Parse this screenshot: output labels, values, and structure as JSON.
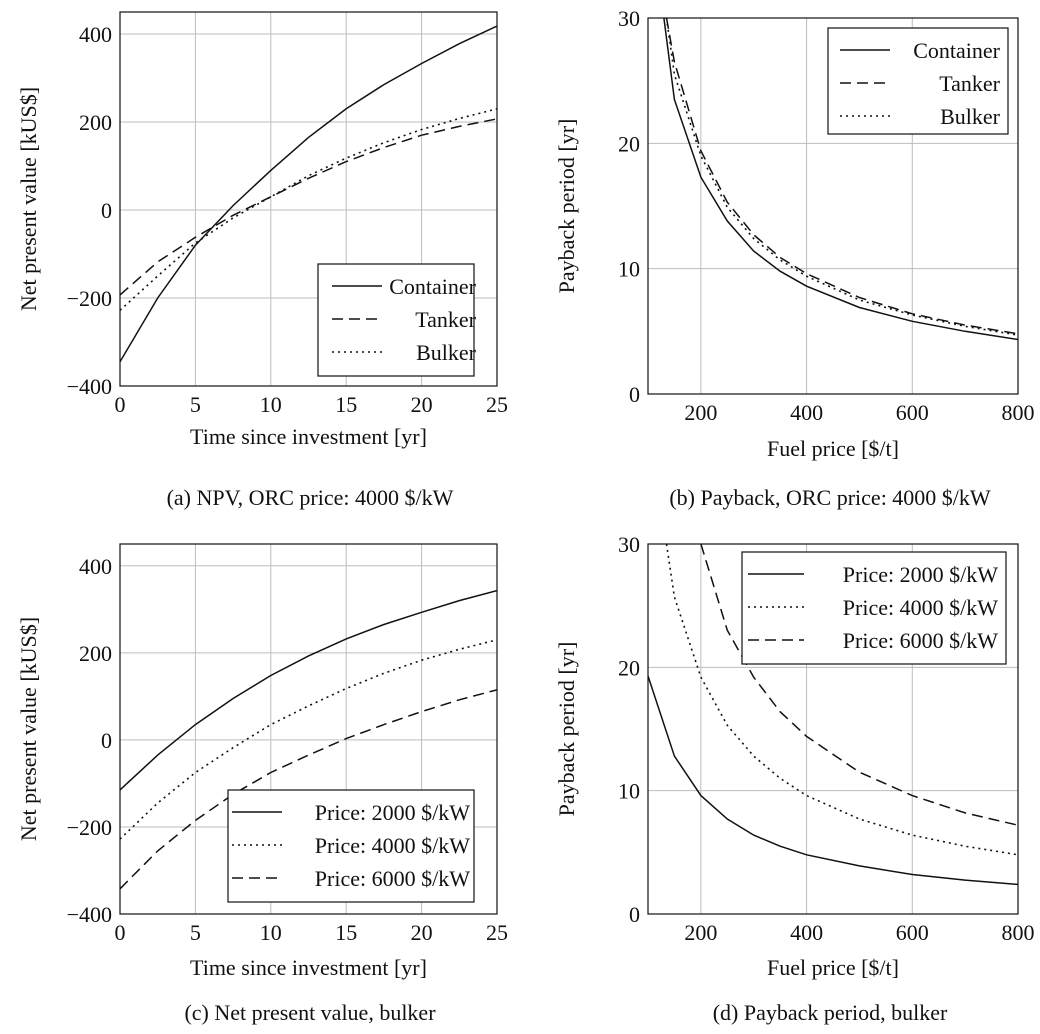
{
  "chart_data": [
    {
      "id": "a",
      "type": "line",
      "caption": "(a) NPV, ORC price: 4000 $/kW",
      "xlabel": "Time since investment [yr]",
      "ylabel": "Net present value [kUS$]",
      "xlim": [
        0,
        25
      ],
      "ylim": [
        -400,
        450
      ],
      "xticks": [
        0,
        5,
        10,
        15,
        20,
        25
      ],
      "yticks": [
        -400,
        -200,
        0,
        200,
        400
      ],
      "xtick_labels": [
        "0",
        "5",
        "10",
        "15",
        "20",
        "25"
      ],
      "ytick_labels": [
        "−400",
        "−200",
        "0",
        "200",
        "400"
      ],
      "grid": true,
      "legend_position": "lower-right",
      "series": [
        {
          "name": "Container",
          "style": "solid",
          "x": [
            0,
            2.5,
            5,
            7.5,
            10,
            12.5,
            15,
            17.5,
            20,
            22.5,
            25
          ],
          "y": [
            -345,
            -200,
            -80,
            10,
            90,
            165,
            230,
            285,
            333,
            378,
            418
          ]
        },
        {
          "name": "Tanker",
          "style": "dashed",
          "x": [
            0,
            2.5,
            5,
            7.5,
            10,
            12.5,
            15,
            17.5,
            20,
            22.5,
            25
          ],
          "y": [
            -193,
            -118,
            -62,
            -12,
            30,
            72,
            110,
            142,
            170,
            190,
            207
          ]
        },
        {
          "name": "Bulker",
          "style": "dotted",
          "x": [
            0,
            2.5,
            5,
            7.5,
            10,
            12.5,
            15,
            17.5,
            20,
            22.5,
            25
          ],
          "y": [
            -228,
            -150,
            -75,
            -18,
            30,
            78,
            118,
            153,
            183,
            208,
            230
          ]
        }
      ]
    },
    {
      "id": "b",
      "type": "line",
      "caption": "(b) Payback, ORC price: 4000 $/kW",
      "xlabel": "Fuel price [$/t]",
      "ylabel": "Payback period [yr]",
      "xlim": [
        100,
        800
      ],
      "ylim": [
        0,
        30
      ],
      "xticks": [
        200,
        400,
        600,
        800
      ],
      "yticks": [
        0,
        10,
        20,
        30
      ],
      "xtick_labels": [
        "200",
        "400",
        "600",
        "800"
      ],
      "ytick_labels": [
        "0",
        "10",
        "20",
        "30"
      ],
      "grid": true,
      "legend_position": "top-right",
      "series": [
        {
          "name": "Container",
          "style": "solid",
          "x": [
            130,
            150,
            200,
            250,
            300,
            350,
            400,
            500,
            600,
            700,
            800
          ],
          "y": [
            30,
            23.5,
            17.3,
            13.8,
            11.4,
            9.8,
            8.6,
            6.9,
            5.8,
            5.0,
            4.35
          ]
        },
        {
          "name": "Tanker",
          "style": "dashed",
          "x": [
            135,
            150,
            200,
            250,
            300,
            350,
            400,
            500,
            600,
            700,
            800
          ],
          "y": [
            30,
            26.5,
            19.4,
            15.3,
            12.7,
            10.9,
            9.6,
            7.7,
            6.4,
            5.5,
            4.8
          ]
        },
        {
          "name": "Bulker",
          "style": "dotted",
          "x": [
            135,
            150,
            200,
            250,
            300,
            350,
            400,
            500,
            600,
            700,
            800
          ],
          "y": [
            30,
            25.5,
            19.0,
            14.9,
            12.4,
            10.7,
            9.4,
            7.5,
            6.3,
            5.4,
            4.7
          ]
        }
      ]
    },
    {
      "id": "c",
      "type": "line",
      "caption": "(c) Net present value, bulker",
      "xlabel": "Time since investment [yr]",
      "ylabel": "Net present value [kUS$]",
      "xlim": [
        0,
        25
      ],
      "ylim": [
        -400,
        450
      ],
      "xticks": [
        0,
        5,
        10,
        15,
        20,
        25
      ],
      "yticks": [
        -400,
        -200,
        0,
        200,
        400
      ],
      "xtick_labels": [
        "0",
        "5",
        "10",
        "15",
        "20",
        "25"
      ],
      "ytick_labels": [
        "−400",
        "−200",
        "0",
        "200",
        "400"
      ],
      "grid": true,
      "legend_position": "lower-right",
      "series": [
        {
          "name": "Price: 2000 $/kW",
          "style": "solid",
          "x": [
            0,
            2.5,
            5,
            7.5,
            10,
            12.5,
            15,
            17.5,
            20,
            22.5,
            25
          ],
          "y": [
            -115,
            -35,
            35,
            95,
            148,
            193,
            232,
            265,
            293,
            320,
            343
          ]
        },
        {
          "name": "Price: 4000 $/kW",
          "style": "dotted",
          "x": [
            0,
            2.5,
            5,
            7.5,
            10,
            12.5,
            15,
            17.5,
            20,
            22.5,
            25
          ],
          "y": [
            -228,
            -145,
            -75,
            -18,
            35,
            78,
            118,
            153,
            183,
            208,
            230
          ]
        },
        {
          "name": "Price: 6000 $/kW",
          "style": "dashed",
          "x": [
            0,
            2.5,
            5,
            7.5,
            10,
            12.5,
            15,
            17.5,
            20,
            22.5,
            25
          ],
          "y": [
            -342,
            -255,
            -185,
            -125,
            -75,
            -35,
            3,
            35,
            65,
            92,
            115
          ]
        }
      ]
    },
    {
      "id": "d",
      "type": "line",
      "caption": "(d) Payback period, bulker",
      "xlabel": "Fuel price [$/t]",
      "ylabel": "Payback period [yr]",
      "xlim": [
        100,
        800
      ],
      "ylim": [
        0,
        30
      ],
      "xticks": [
        200,
        400,
        600,
        800
      ],
      "yticks": [
        0,
        10,
        20,
        30
      ],
      "xtick_labels": [
        "200",
        "400",
        "600",
        "800"
      ],
      "ytick_labels": [
        "0",
        "10",
        "20",
        "30"
      ],
      "grid": true,
      "legend_position": "top-right",
      "series": [
        {
          "name": "Price: 2000 $/kW",
          "style": "solid",
          "x": [
            100,
            150,
            200,
            250,
            300,
            350,
            400,
            500,
            600,
            700,
            800
          ],
          "y": [
            19.3,
            12.8,
            9.6,
            7.7,
            6.4,
            5.5,
            4.8,
            3.9,
            3.2,
            2.75,
            2.4
          ]
        },
        {
          "name": "Price: 4000 $/kW",
          "style": "dotted",
          "x": [
            135,
            150,
            200,
            250,
            300,
            350,
            400,
            500,
            600,
            700,
            800
          ],
          "y": [
            30,
            25.7,
            19.2,
            15.3,
            12.8,
            11.0,
            9.6,
            7.7,
            6.4,
            5.5,
            4.8
          ]
        },
        {
          "name": "Price: 6000 $/kW",
          "style": "dashed",
          "x": [
            200,
            250,
            300,
            350,
            400,
            500,
            600,
            700,
            800
          ],
          "y": [
            30,
            23.0,
            19.2,
            16.4,
            14.4,
            11.5,
            9.6,
            8.2,
            7.2
          ]
        }
      ]
    }
  ]
}
